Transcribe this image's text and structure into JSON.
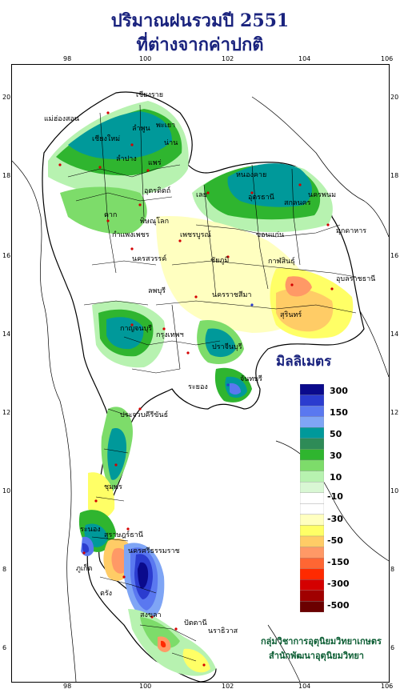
{
  "title_line1": "ปริมาณฝนรวมปี  2551",
  "title_line2": "ที่ต่างจากค่าปกติ",
  "axis": {
    "lon_ticks": [
      "98",
      "100",
      "102",
      "104",
      "106"
    ],
    "lat_ticks": [
      "20",
      "18",
      "16",
      "14",
      "12",
      "10",
      "8",
      "6"
    ]
  },
  "legend": {
    "unit": "มิลลิเมตร",
    "labels": [
      "300",
      "150",
      "50",
      "30",
      "10",
      "-10",
      "-30",
      "-50",
      "-150",
      "-300",
      "-500"
    ],
    "colors": [
      "#0a0a8c",
      "#2b3ccf",
      "#5a78f0",
      "#7fa5f5",
      "#00999a",
      "#2e8b57",
      "#2fb52f",
      "#7ddc6a",
      "#b7f2b0",
      "#d9f7d4",
      "#ffffff",
      "#ffffff",
      "#ffffc0",
      "#ffff66",
      "#ffcc66",
      "#ff9966",
      "#ff6633",
      "#ff2a00",
      "#d40000",
      "#a00000",
      "#6b0000"
    ]
  },
  "credits": {
    "line1": "กลุ่มวิชาการอุตุนิยมวิทยาเกษตร",
    "line2": "สำนักพัฒนาอุตุนิยมวิทยา"
  },
  "provinces": [
    "เชียงราย",
    "แม่ฮ่องสอน",
    "พะเยา",
    "เชียงใหม่",
    "ลำพูน",
    "ลำปาง",
    "น่าน",
    "แพร่",
    "ตาก",
    "อุตรดิตถ์",
    "หนองคาย",
    "เลย",
    "อุดรธานี",
    "สกลนคร",
    "นครพนม",
    "มุกดาหาร",
    "พิษณุโลก",
    "กำแพงเพชร",
    "เพชรบูรณ์",
    "ขอนแก่น",
    "กาฬสินธุ์",
    "นครสวรรค์",
    "ชัยภูมิ",
    "ลพบุรี",
    "นครราชสีมา",
    "สุรินทร์",
    "อุบลราชธานี",
    "กาญจนบุรี",
    "กรุงเทพฯ",
    "ปราจีนบุรี",
    "ระยอง",
    "จันทบุรี",
    "ประจวบคีรีขันธ์",
    "ชุมพร",
    "ระนอง",
    "สุราษฎร์ธานี",
    "นครศรีธรรมราช",
    "ภูเก็ต",
    "ตรัง",
    "สงขลา",
    "ปัตตานี",
    "นราธิวาส"
  ]
}
